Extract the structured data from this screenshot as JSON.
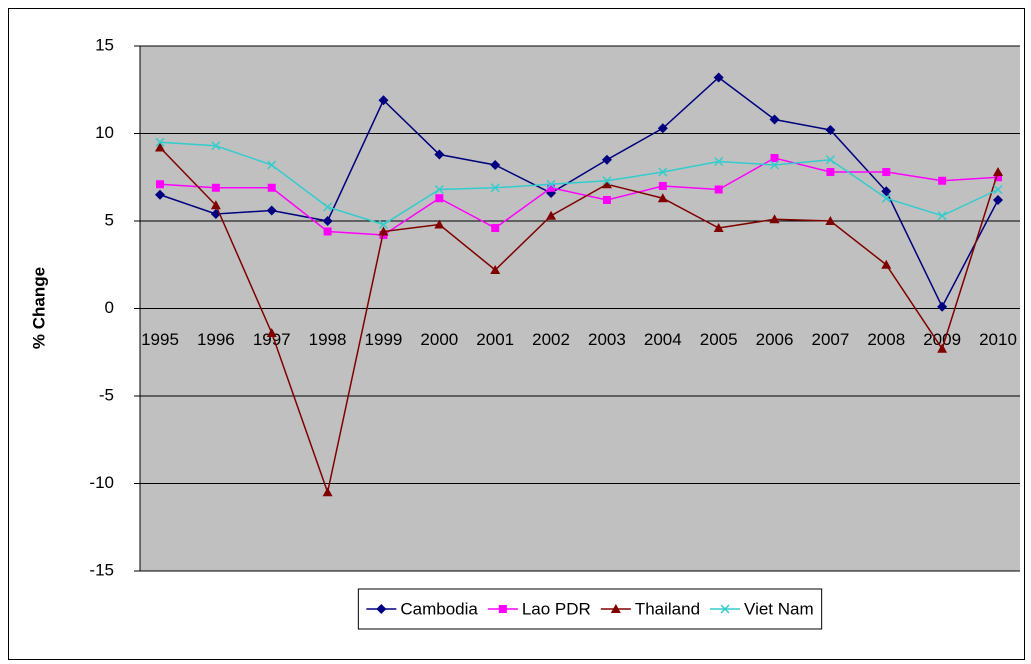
{
  "chart_data": {
    "type": "line",
    "y_label": "% Change",
    "categories": [
      "1995",
      "1996",
      "1997",
      "1998",
      "1999",
      "2000",
      "2001",
      "2002",
      "2003",
      "2004",
      "2005",
      "2006",
      "2007",
      "2008",
      "2009",
      "2010"
    ],
    "series": [
      {
        "name": "Cambodia",
        "color": "#000080",
        "marker": "diamond",
        "values": [
          6.5,
          5.4,
          5.6,
          5.0,
          11.9,
          8.8,
          8.2,
          6.6,
          8.5,
          10.3,
          13.2,
          10.8,
          10.2,
          6.7,
          0.1,
          6.2
        ]
      },
      {
        "name": "Lao PDR",
        "color": "#ff00ff",
        "marker": "square",
        "values": [
          7.1,
          6.9,
          6.9,
          4.4,
          4.2,
          6.3,
          4.6,
          6.9,
          6.2,
          7.0,
          6.8,
          8.6,
          7.8,
          7.8,
          7.3,
          7.5
        ]
      },
      {
        "name": "Thailand",
        "color": "#800000",
        "marker": "triangle",
        "values": [
          9.2,
          5.9,
          -1.4,
          -10.5,
          4.4,
          4.8,
          2.2,
          5.3,
          7.1,
          6.3,
          4.6,
          5.1,
          5.0,
          2.5,
          -2.3,
          7.8
        ]
      },
      {
        "name": "Viet Nam",
        "color": "#33cccc",
        "marker": "x",
        "values": [
          9.5,
          9.3,
          8.2,
          5.8,
          4.8,
          6.8,
          6.9,
          7.1,
          7.3,
          7.8,
          8.4,
          8.2,
          8.5,
          6.3,
          5.3,
          6.8
        ]
      }
    ],
    "ylim": [
      -15,
      15
    ],
    "yticks": [
      -15,
      -10,
      -5,
      0,
      5,
      10,
      15
    ],
    "grid": true,
    "plot_background": "#c0c0c0",
    "legend": "bottom"
  }
}
